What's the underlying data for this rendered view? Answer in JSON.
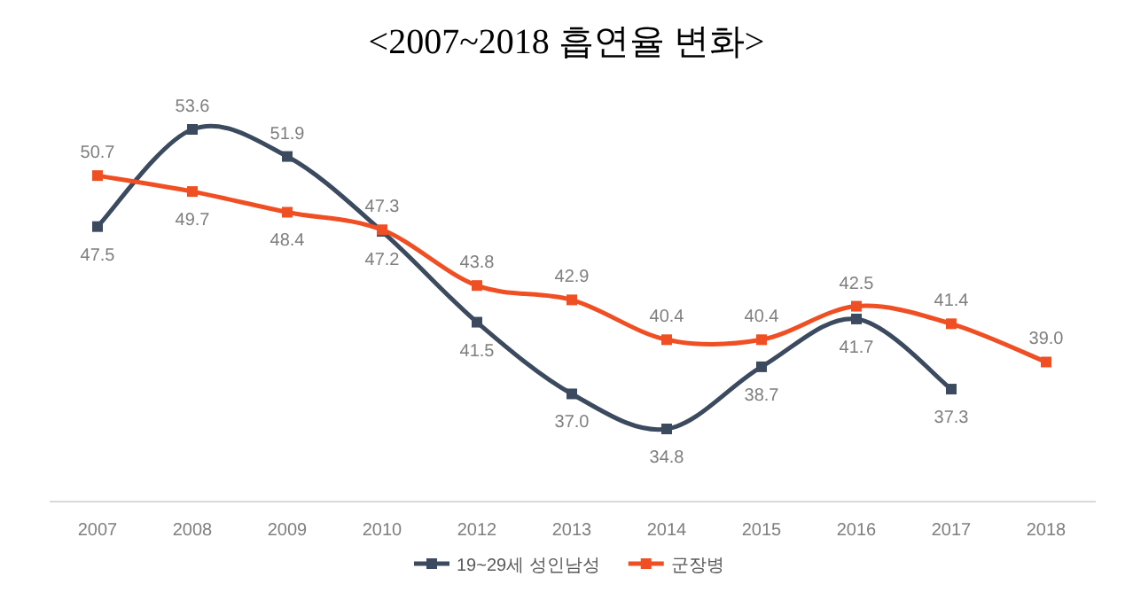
{
  "chart_data": {
    "type": "line",
    "title": "<2007~2018 흡연율 변화>",
    "categories": [
      "2007",
      "2008",
      "2009",
      "2010",
      "2012",
      "2013",
      "2014",
      "2015",
      "2016",
      "2017",
      "2018"
    ],
    "series": [
      {
        "name": "19~29세 성인남성",
        "color": "#3b4a5e",
        "values": [
          47.5,
          53.6,
          51.9,
          47.2,
          41.5,
          37.0,
          34.8,
          38.7,
          41.7,
          37.3,
          null
        ],
        "value_labels": [
          "47.5",
          "53.6",
          "51.9",
          "47.2",
          "41.5",
          "37.0",
          "34.8",
          "38.7",
          "41.7",
          "37.3",
          null
        ]
      },
      {
        "name": "군장병",
        "color": "#f04e23",
        "values": [
          50.7,
          49.7,
          48.4,
          47.3,
          43.8,
          42.9,
          40.4,
          40.4,
          42.5,
          41.4,
          39.0
        ],
        "value_labels": [
          "50.7",
          "49.7",
          "48.4",
          "47.3",
          "43.8",
          "42.9",
          "40.4",
          "40.4",
          "42.5",
          "41.4",
          "39.0"
        ]
      }
    ],
    "legend": "bottom",
    "marker": "square",
    "line_style": "solid"
  }
}
